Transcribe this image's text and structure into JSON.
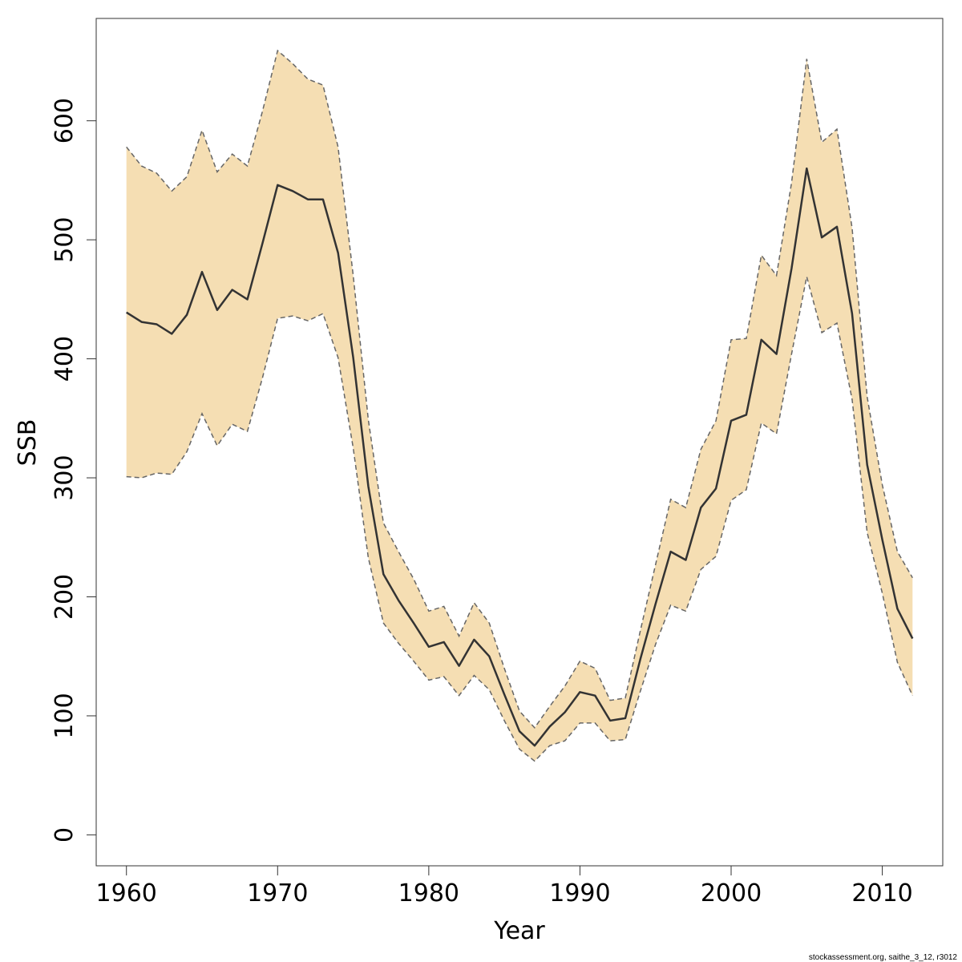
{
  "chart_data": {
    "type": "line",
    "title": "",
    "xlabel": "Year",
    "ylabel": "SSB",
    "xlim": [
      1958,
      2014
    ],
    "ylim": [
      -26,
      686
    ],
    "x_ticks": [
      1960,
      1970,
      1980,
      1990,
      2000,
      2010
    ],
    "y_ticks": [
      0,
      100,
      200,
      300,
      400,
      500,
      600
    ],
    "grid": false,
    "colors": {
      "band": "#f5deb3",
      "line": "#333333",
      "bound": "#666666",
      "axis": "#333333"
    },
    "x": [
      1960,
      1961,
      1962,
      1963,
      1964,
      1965,
      1966,
      1967,
      1968,
      1969,
      1970,
      1971,
      1972,
      1973,
      1974,
      1975,
      1976,
      1977,
      1978,
      1979,
      1980,
      1981,
      1982,
      1983,
      1984,
      1985,
      1986,
      1987,
      1988,
      1989,
      1990,
      1991,
      1992,
      1993,
      1994,
      1995,
      1996,
      1997,
      1998,
      1999,
      2000,
      2001,
      2002,
      2003,
      2004,
      2005,
      2006,
      2007,
      2008,
      2009,
      2010,
      2011,
      2012
    ],
    "series": [
      {
        "name": "SSB",
        "values": [
          439,
          431,
          429,
          421,
          437,
          473,
          441,
          458,
          450,
          497,
          546,
          541,
          534,
          534,
          489,
          401,
          293,
          219,
          197,
          178,
          158,
          162,
          142,
          164,
          150,
          118,
          87,
          75,
          91,
          103,
          120,
          117,
          96,
          98,
          148,
          194,
          238,
          231,
          275,
          291,
          348,
          353,
          416,
          404,
          476,
          560,
          502,
          511,
          438,
          311,
          248,
          190,
          165
        ]
      },
      {
        "name": "Upper bound",
        "values": [
          578,
          562,
          556,
          541,
          553,
          592,
          557,
          572,
          562,
          608,
          659,
          648,
          635,
          630,
          578,
          470,
          349,
          262,
          238,
          215,
          188,
          192,
          167,
          195,
          178,
          140,
          104,
          90,
          108,
          125,
          146,
          140,
          113,
          115,
          172,
          227,
          282,
          275,
          324,
          348,
          416,
          417,
          487,
          470,
          548,
          652,
          582,
          593,
          510,
          368,
          294,
          238,
          216
        ]
      },
      {
        "name": "Lower bound",
        "values": [
          301,
          300,
          304,
          303,
          322,
          354,
          327,
          345,
          339,
          384,
          434,
          436,
          432,
          438,
          401,
          325,
          233,
          178,
          161,
          146,
          130,
          133,
          117,
          134,
          122,
          96,
          72,
          62,
          75,
          79,
          94,
          94,
          79,
          80,
          121,
          160,
          193,
          188,
          223,
          234,
          281,
          290,
          346,
          337,
          404,
          469,
          422,
          430,
          366,
          254,
          203,
          145,
          117
        ]
      }
    ]
  },
  "footer": {
    "credit": "stockassessment.org, saithe_3_12, r3012"
  }
}
